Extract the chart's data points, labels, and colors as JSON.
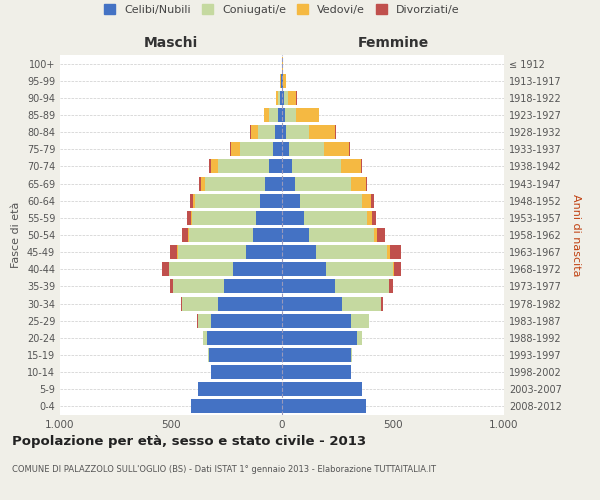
{
  "age_groups": [
    "0-4",
    "5-9",
    "10-14",
    "15-19",
    "20-24",
    "25-29",
    "30-34",
    "35-39",
    "40-44",
    "45-49",
    "50-54",
    "55-59",
    "60-64",
    "65-69",
    "70-74",
    "75-79",
    "80-84",
    "85-89",
    "90-94",
    "95-99",
    "100+"
  ],
  "birth_years": [
    "2008-2012",
    "2003-2007",
    "1998-2002",
    "1993-1997",
    "1988-1992",
    "1983-1987",
    "1978-1982",
    "1973-1977",
    "1968-1972",
    "1963-1967",
    "1958-1962",
    "1953-1957",
    "1948-1952",
    "1943-1947",
    "1938-1942",
    "1933-1937",
    "1928-1932",
    "1923-1927",
    "1918-1922",
    "1913-1917",
    "≤ 1912"
  ],
  "male_celibe": [
    410,
    380,
    320,
    330,
    340,
    320,
    290,
    260,
    220,
    160,
    130,
    115,
    100,
    75,
    60,
    40,
    30,
    20,
    10,
    4,
    2
  ],
  "male_coniugato": [
    0,
    0,
    0,
    5,
    15,
    60,
    160,
    230,
    290,
    310,
    290,
    290,
    290,
    270,
    230,
    150,
    80,
    40,
    10,
    2,
    0
  ],
  "male_vedovo": [
    0,
    0,
    0,
    0,
    0,
    0,
    0,
    0,
    0,
    5,
    5,
    5,
    10,
    20,
    30,
    40,
    30,
    20,
    5,
    2,
    0
  ],
  "male_divorziato": [
    0,
    0,
    0,
    0,
    0,
    2,
    5,
    15,
    30,
    30,
    25,
    20,
    15,
    10,
    10,
    5,
    2,
    0,
    0,
    0,
    0
  ],
  "female_celibe": [
    380,
    360,
    310,
    310,
    340,
    310,
    270,
    240,
    200,
    155,
    120,
    100,
    80,
    60,
    45,
    30,
    20,
    15,
    10,
    4,
    2
  ],
  "female_coniugato": [
    0,
    0,
    0,
    5,
    20,
    80,
    175,
    240,
    300,
    320,
    295,
    285,
    280,
    250,
    220,
    160,
    100,
    50,
    15,
    2,
    0
  ],
  "female_vedovo": [
    0,
    0,
    0,
    0,
    0,
    0,
    0,
    2,
    5,
    10,
    15,
    20,
    40,
    70,
    90,
    110,
    120,
    100,
    40,
    10,
    2
  ],
  "female_divorziato": [
    0,
    0,
    0,
    0,
    0,
    2,
    10,
    20,
    30,
    50,
    35,
    20,
    15,
    5,
    5,
    5,
    5,
    2,
    2,
    0,
    0
  ],
  "color_celibe": "#4472c4",
  "color_coniugato": "#c5d9a0",
  "color_vedovo": "#f5b942",
  "color_divorziato": "#c0504d",
  "title": "Popolazione per età, sesso e stato civile - 2013",
  "subtitle": "COMUNE DI PALAZZOLO SULL'OGLIO (BS) - Dati ISTAT 1° gennaio 2013 - Elaborazione TUTTAITALIA.IT",
  "xlabel_left": "Maschi",
  "xlabel_right": "Femmine",
  "ylabel_left": "Fasce di età",
  "ylabel_right": "Anni di nascita",
  "xlim": 1000,
  "bg_color": "#f0efe8",
  "plot_bg_color": "#ffffff"
}
